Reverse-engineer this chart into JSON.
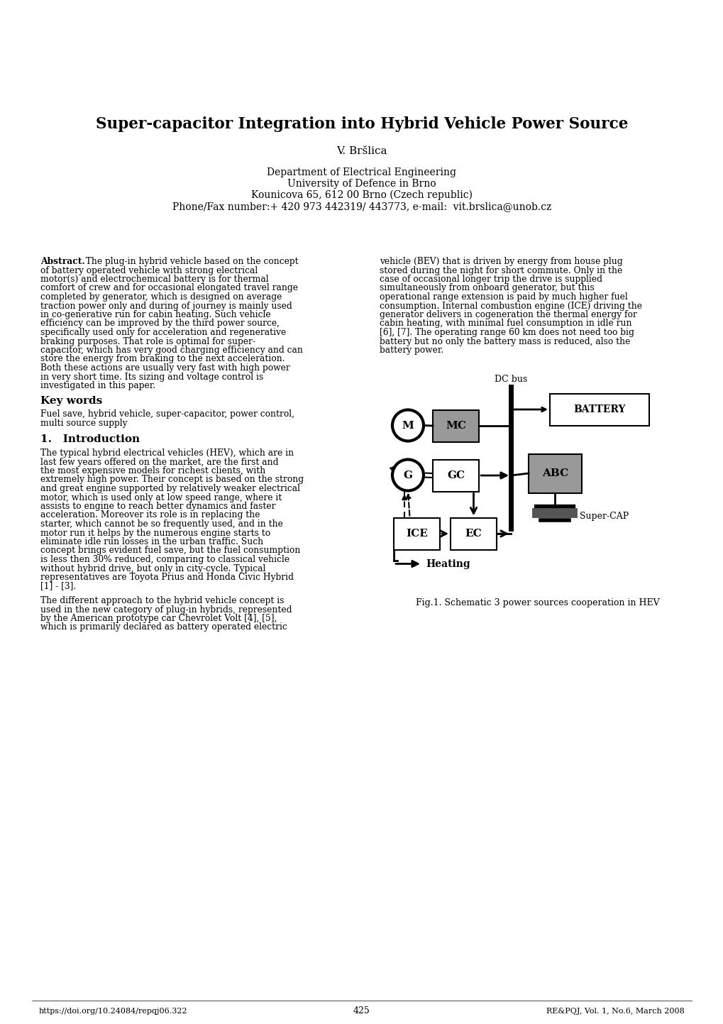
{
  "title": "Super-capacitor Integration into Hybrid Vehicle Power Source",
  "author": "V. Bršlica",
  "affiliation_line1": "Department of Electrical Engineering",
  "affiliation_line2": "University of Defence in Brno",
  "affiliation_line3": "Kounicova 65, 612 00 Brno (Czech republic)",
  "affiliation_line4": "Phone/Fax number:+ 420 973 442319/ 443773, e-mail:  vit.brslica@unob.cz",
  "abstract_title": "Abstract.",
  "abstract_text": "The plug-in hybrid vehicle based on the concept of battery operated vehicle with strong electrical motor(s) and electrochemical battery is for thermal comfort of crew and for occasional elongated travel range completed by generator, which is designed on average traction power only and during of journey is mainly used in co-generative run for cabin heating. Such vehicle efficiency can be improved by the third power source, specifically used only for acceleration and regenerative braking purposes. That role is optimal for super-capacitor, which has very good charging efficiency and can store the energy from braking to the next acceleration. Both these actions are usually very fast with high power in very short time. Its sizing and voltage control is investigated in this paper.",
  "keywords_title": "Key words",
  "keywords_text": "Fuel save, hybrid vehicle, super-capacitor, power control,\nmulti source supply",
  "section1_title": "1.   Introduction",
  "intro_text1": "The typical hybrid electrical vehicles (HEV), which are in last few years offered on the market, are the first and the most expensive models for richest clients, with extremely high power. Their concept is based on the strong and great engine supported by relatively weaker electrical motor, which is used only at low speed range, where it assists to engine to reach better dynamics and faster acceleration. Moreover its role is in replacing the starter, which cannot be so frequently used, and in the motor run it helps by the numerous engine starts to eliminate idle run losses in the urban traffic. Such concept brings evident fuel save, but the fuel consumption is less then 30% reduced, comparing to classical vehicle without hybrid drive, but only in city-cycle. Typical representatives are Toyota Prius and Honda Civic Hybrid [1] - [3].",
  "intro_text2": "The different approach to the hybrid vehicle concept is used in the new category of plug-in hybrids, represented by the American prototype car Chevrolet Volt [4], [5], which is primarily declared as battery operated electric",
  "right_text1": "vehicle (BEV) that is driven by energy from house plug stored during the night for short commute. Only in the case of occasional longer trip the drive is supplied simultaneously from onboard generator, but this operational range extension is paid by much higher fuel consumption. Internal combustion engine (ICE) driving the generator delivers in cogeneration the thermal energy for cabin heating, with minimal fuel consumption in idle run [6], [7]. The operating range 60 km does not need too big battery but no only the battery mass is reduced, also the battery power.",
  "fig_caption": "Fig.1. Schematic 3 power sources cooperation in HEV",
  "footer_left": "https://doi.org/10.24084/repqj06.322",
  "footer_center": "425",
  "footer_right": "RE&PQJ, Vol. 1, No.6, March 2008",
  "bg_color": "#ffffff",
  "text_color": "#000000",
  "box_gray": "#aaaaaa",
  "box_light_gray": "#cccccc"
}
